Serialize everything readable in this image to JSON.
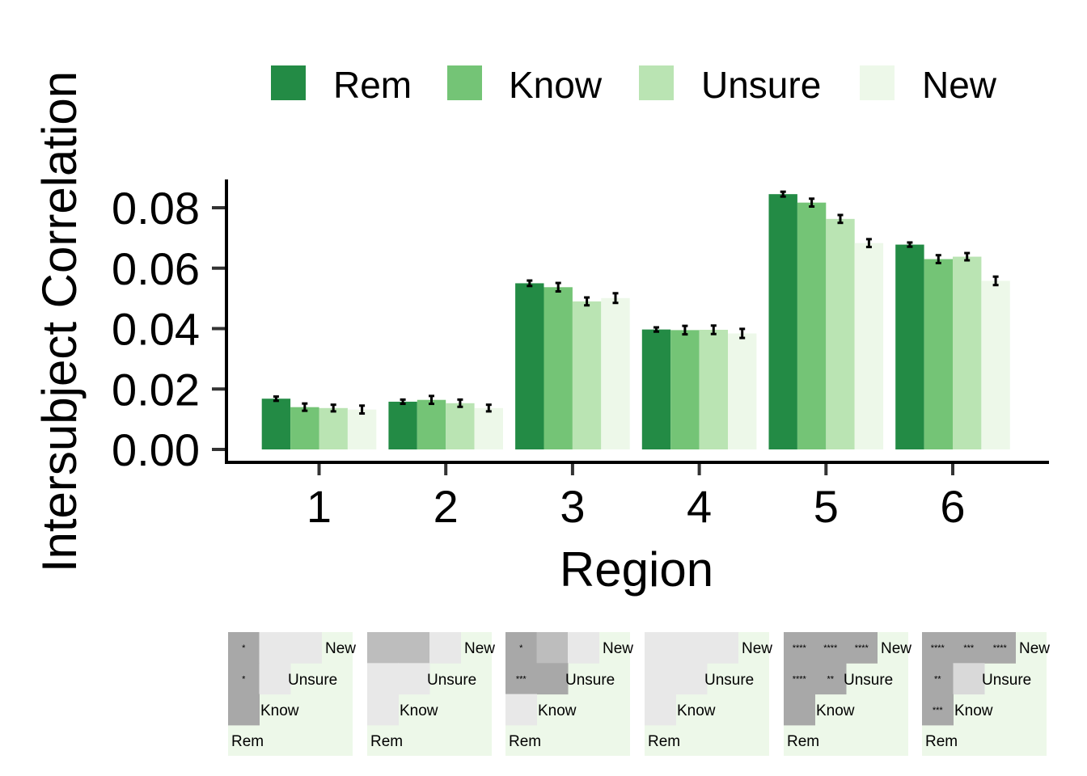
{
  "chart_data": {
    "type": "bar",
    "xlabel": "Region",
    "ylabel": "Intersubject Correlation",
    "ylim": [
      0,
      0.088
    ],
    "y_ticks": [
      "0.00",
      "0.02",
      "0.04",
      "0.06",
      "0.08"
    ],
    "y_tick_values": [
      0,
      0.02,
      0.04,
      0.06,
      0.08
    ],
    "categories": [
      "1",
      "2",
      "3",
      "4",
      "5",
      "6"
    ],
    "legend_position": "top",
    "grid": false,
    "series": [
      {
        "name": "Rem",
        "color": "#238b45",
        "values": [
          0.0168,
          0.0158,
          0.055,
          0.0397,
          0.0845,
          0.0678
        ],
        "errors": [
          0.0007,
          0.0007,
          0.0009,
          0.0007,
          0.0008,
          0.0007
        ]
      },
      {
        "name": "Know",
        "color": "#74c476",
        "values": [
          0.014,
          0.0164,
          0.0537,
          0.0395,
          0.0817,
          0.063
        ],
        "errors": [
          0.0012,
          0.0013,
          0.0014,
          0.0014,
          0.0013,
          0.0013
        ]
      },
      {
        "name": "Unsure",
        "color": "#bae4b3",
        "values": [
          0.0137,
          0.0153,
          0.049,
          0.0396,
          0.0763,
          0.0638
        ],
        "errors": [
          0.0011,
          0.0012,
          0.0013,
          0.0014,
          0.0013,
          0.0012
        ]
      },
      {
        "name": "New",
        "color": "#edf8e9",
        "values": [
          0.0132,
          0.0137,
          0.0501,
          0.0384,
          0.0683,
          0.0558
        ],
        "errors": [
          0.0013,
          0.0011,
          0.0016,
          0.0015,
          0.0013,
          0.0014
        ]
      }
    ]
  },
  "significance_matrices": {
    "labels": [
      "Rem",
      "Know",
      "Unsure",
      "New"
    ],
    "background": "#edf8e9",
    "shade_colors": {
      "strong": "#a8a8a8",
      "medium": "#bdbdbd",
      "light": "#d9d9d9",
      "faint": "#e8e8e8"
    },
    "panels": [
      {
        "region": "1",
        "cells": [
          {
            "row": "New",
            "col": "Rem",
            "shade": "strong",
            "label": "*"
          },
          {
            "row": "New",
            "col": "Know",
            "shade": "faint",
            "label": ""
          },
          {
            "row": "New",
            "col": "Unsure",
            "shade": "faint",
            "label": ""
          },
          {
            "row": "Unsure",
            "col": "Rem",
            "shade": "strong",
            "label": "*"
          },
          {
            "row": "Unsure",
            "col": "Know",
            "shade": "faint",
            "label": ""
          },
          {
            "row": "Know",
            "col": "Rem",
            "shade": "strong",
            "label": ""
          }
        ]
      },
      {
        "region": "2",
        "cells": [
          {
            "row": "New",
            "col": "Rem",
            "shade": "medium",
            "label": ""
          },
          {
            "row": "New",
            "col": "Know",
            "shade": "medium",
            "label": ""
          },
          {
            "row": "New",
            "col": "Unsure",
            "shade": "faint",
            "label": ""
          },
          {
            "row": "Unsure",
            "col": "Rem",
            "shade": "faint",
            "label": ""
          },
          {
            "row": "Unsure",
            "col": "Know",
            "shade": "faint",
            "label": ""
          },
          {
            "row": "Know",
            "col": "Rem",
            "shade": "faint",
            "label": ""
          }
        ]
      },
      {
        "region": "3",
        "cells": [
          {
            "row": "New",
            "col": "Rem",
            "shade": "strong",
            "label": "*"
          },
          {
            "row": "New",
            "col": "Know",
            "shade": "medium",
            "label": ""
          },
          {
            "row": "New",
            "col": "Unsure",
            "shade": "faint",
            "label": ""
          },
          {
            "row": "Unsure",
            "col": "Rem",
            "shade": "strong",
            "label": "***"
          },
          {
            "row": "Unsure",
            "col": "Know",
            "shade": "strong",
            "label": ""
          },
          {
            "row": "Know",
            "col": "Rem",
            "shade": "faint",
            "label": ""
          }
        ]
      },
      {
        "region": "4",
        "cells": [
          {
            "row": "New",
            "col": "Rem",
            "shade": "faint",
            "label": ""
          },
          {
            "row": "New",
            "col": "Know",
            "shade": "faint",
            "label": ""
          },
          {
            "row": "New",
            "col": "Unsure",
            "shade": "faint",
            "label": ""
          },
          {
            "row": "Unsure",
            "col": "Rem",
            "shade": "faint",
            "label": ""
          },
          {
            "row": "Unsure",
            "col": "Know",
            "shade": "faint",
            "label": ""
          },
          {
            "row": "Know",
            "col": "Rem",
            "shade": "faint",
            "label": ""
          }
        ]
      },
      {
        "region": "5",
        "cells": [
          {
            "row": "New",
            "col": "Rem",
            "shade": "strong",
            "label": "****"
          },
          {
            "row": "New",
            "col": "Know",
            "shade": "strong",
            "label": "****"
          },
          {
            "row": "New",
            "col": "Unsure",
            "shade": "strong",
            "label": "****"
          },
          {
            "row": "Unsure",
            "col": "Rem",
            "shade": "strong",
            "label": "****"
          },
          {
            "row": "Unsure",
            "col": "Know",
            "shade": "strong",
            "label": "**"
          },
          {
            "row": "Know",
            "col": "Rem",
            "shade": "strong",
            "label": ""
          }
        ]
      },
      {
        "region": "6",
        "cells": [
          {
            "row": "New",
            "col": "Rem",
            "shade": "strong",
            "label": "****"
          },
          {
            "row": "New",
            "col": "Know",
            "shade": "strong",
            "label": "***"
          },
          {
            "row": "New",
            "col": "Unsure",
            "shade": "strong",
            "label": "****"
          },
          {
            "row": "Unsure",
            "col": "Rem",
            "shade": "strong",
            "label": "**"
          },
          {
            "row": "Unsure",
            "col": "Know",
            "shade": "light",
            "label": ""
          },
          {
            "row": "Know",
            "col": "Rem",
            "shade": "strong",
            "label": "***"
          }
        ]
      }
    ]
  }
}
